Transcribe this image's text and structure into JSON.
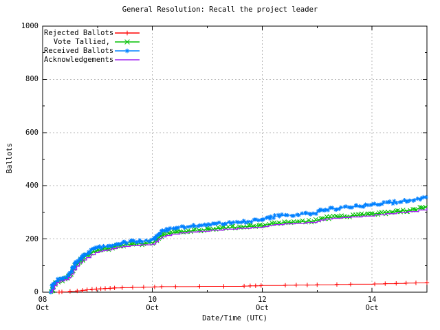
{
  "chart_data": {
    "type": "line",
    "title": "General Resolution: Recall the project leader",
    "xlabel": "Date/Time (UTC)",
    "ylabel": "Ballots",
    "grid": "on",
    "legend_position": "top-left-inside",
    "colors": {
      "grid": "#b4b4b4",
      "border": "#000000",
      "text": "#000000",
      "background": "#ffffff"
    },
    "y_axis": {
      "min": 0,
      "max": 1000,
      "major_ticks": [
        0,
        200,
        400,
        600,
        800,
        1000
      ],
      "minor_ticks": [
        100,
        300,
        500,
        700,
        900
      ]
    },
    "x_axis": {
      "unit": "days from first tick",
      "range": [
        0,
        7
      ],
      "major_ticks": [
        {
          "t": 0,
          "day": "08",
          "month": "Oct"
        },
        {
          "t": 2,
          "day": "10",
          "month": "Oct"
        },
        {
          "t": 4,
          "day": "12",
          "month": "Oct"
        },
        {
          "t": 6,
          "day": "14",
          "month": "Oct"
        }
      ],
      "minor_ticks_t": [
        1,
        3,
        5,
        7
      ]
    },
    "series": [
      {
        "name": "Rejected Ballots",
        "color": "#ff0000",
        "marker": "plus",
        "marker_mode": "points",
        "line_style": "steps",
        "points": [
          [
            0.3,
            0
          ],
          [
            0.35,
            1
          ],
          [
            0.5,
            3
          ],
          [
            0.63,
            5
          ],
          [
            0.73,
            7
          ],
          [
            0.81,
            9
          ],
          [
            0.9,
            11
          ],
          [
            0.98,
            12
          ],
          [
            1.06,
            13
          ],
          [
            1.14,
            14
          ],
          [
            1.23,
            15
          ],
          [
            1.31,
            16
          ],
          [
            1.45,
            17
          ],
          [
            1.64,
            18
          ],
          [
            1.84,
            19
          ],
          [
            2.04,
            20
          ],
          [
            2.17,
            21
          ],
          [
            2.42,
            21
          ],
          [
            2.86,
            22
          ],
          [
            3.3,
            22
          ],
          [
            3.67,
            23
          ],
          [
            3.78,
            24
          ],
          [
            3.88,
            24
          ],
          [
            3.98,
            25
          ],
          [
            4.42,
            26
          ],
          [
            4.62,
            27
          ],
          [
            4.82,
            27
          ],
          [
            5.0,
            28
          ],
          [
            5.36,
            29
          ],
          [
            5.61,
            30
          ],
          [
            6.05,
            31
          ],
          [
            6.24,
            32
          ],
          [
            6.44,
            33
          ],
          [
            6.62,
            34
          ],
          [
            6.8,
            35
          ],
          [
            7.0,
            36
          ]
        ]
      },
      {
        "name": "Vote Tallied,",
        "color": "#00c000",
        "marker": "cross",
        "marker_mode": "dense",
        "line_style": "linear",
        "points": [
          [
            0.14,
            0
          ],
          [
            0.16,
            5
          ],
          [
            0.18,
            13
          ],
          [
            0.2,
            23
          ],
          [
            0.23,
            33
          ],
          [
            0.26,
            40
          ],
          [
            0.31,
            44
          ],
          [
            0.37,
            47
          ],
          [
            0.43,
            51
          ],
          [
            0.47,
            57
          ],
          [
            0.51,
            68
          ],
          [
            0.55,
            82
          ],
          [
            0.59,
            96
          ],
          [
            0.64,
            108
          ],
          [
            0.69,
            119
          ],
          [
            0.75,
            129
          ],
          [
            0.81,
            137
          ],
          [
            0.88,
            146
          ],
          [
            0.95,
            153
          ],
          [
            1.01,
            157
          ],
          [
            1.07,
            160
          ],
          [
            1.16,
            162
          ],
          [
            1.23,
            166
          ],
          [
            1.31,
            171
          ],
          [
            1.41,
            175
          ],
          [
            1.53,
            178
          ],
          [
            1.69,
            181
          ],
          [
            1.86,
            183
          ],
          [
            2.0,
            186
          ],
          [
            2.05,
            192
          ],
          [
            2.1,
            202
          ],
          [
            2.15,
            211
          ],
          [
            2.23,
            217
          ],
          [
            2.33,
            221
          ],
          [
            2.47,
            226
          ],
          [
            2.63,
            229
          ],
          [
            2.81,
            233
          ],
          [
            3.0,
            236
          ],
          [
            3.25,
            240
          ],
          [
            3.5,
            244
          ],
          [
            3.78,
            247
          ],
          [
            4.0,
            251
          ],
          [
            4.09,
            254
          ],
          [
            4.19,
            257
          ],
          [
            4.36,
            260
          ],
          [
            4.56,
            263
          ],
          [
            4.76,
            265
          ],
          [
            4.96,
            268
          ],
          [
            5.03,
            273
          ],
          [
            5.11,
            278
          ],
          [
            5.23,
            281
          ],
          [
            5.39,
            284
          ],
          [
            5.56,
            286
          ],
          [
            5.76,
            289
          ],
          [
            6.0,
            294
          ],
          [
            6.2,
            298
          ],
          [
            6.4,
            302
          ],
          [
            6.6,
            306
          ],
          [
            6.8,
            312
          ],
          [
            6.92,
            317
          ],
          [
            7.0,
            322
          ]
        ]
      },
      {
        "name": "Received Ballots",
        "color": "#0080ff",
        "marker": "star",
        "marker_mode": "dense",
        "line_style": "linear",
        "points": [
          [
            0.13,
            0
          ],
          [
            0.15,
            6
          ],
          [
            0.17,
            15
          ],
          [
            0.19,
            26
          ],
          [
            0.22,
            37
          ],
          [
            0.25,
            44
          ],
          [
            0.3,
            48
          ],
          [
            0.36,
            51
          ],
          [
            0.42,
            55
          ],
          [
            0.46,
            62
          ],
          [
            0.5,
            74
          ],
          [
            0.54,
            89
          ],
          [
            0.58,
            103
          ],
          [
            0.63,
            116
          ],
          [
            0.68,
            127
          ],
          [
            0.74,
            137
          ],
          [
            0.8,
            146
          ],
          [
            0.87,
            155
          ],
          [
            0.94,
            162
          ],
          [
            1.0,
            166
          ],
          [
            1.06,
            169
          ],
          [
            1.15,
            171
          ],
          [
            1.22,
            175
          ],
          [
            1.3,
            180
          ],
          [
            1.4,
            185
          ],
          [
            1.52,
            188
          ],
          [
            1.68,
            191
          ],
          [
            1.85,
            193
          ],
          [
            2.0,
            196
          ],
          [
            2.04,
            204
          ],
          [
            2.09,
            217
          ],
          [
            2.14,
            227
          ],
          [
            2.22,
            233
          ],
          [
            2.32,
            237
          ],
          [
            2.46,
            242
          ],
          [
            2.62,
            246
          ],
          [
            2.8,
            250
          ],
          [
            3.0,
            254
          ],
          [
            3.25,
            259
          ],
          [
            3.5,
            263
          ],
          [
            3.78,
            267
          ],
          [
            4.0,
            272
          ],
          [
            4.08,
            278
          ],
          [
            4.18,
            283
          ],
          [
            4.35,
            287
          ],
          [
            4.55,
            290
          ],
          [
            4.75,
            293
          ],
          [
            4.95,
            297
          ],
          [
            5.02,
            303
          ],
          [
            5.1,
            309
          ],
          [
            5.22,
            313
          ],
          [
            5.38,
            316
          ],
          [
            5.55,
            319
          ],
          [
            5.75,
            323
          ],
          [
            6.0,
            329
          ],
          [
            6.2,
            334
          ],
          [
            6.4,
            338
          ],
          [
            6.6,
            343
          ],
          [
            6.8,
            350
          ],
          [
            6.92,
            355
          ],
          [
            7.0,
            359
          ]
        ]
      },
      {
        "name": "Acknowledgements",
        "color": "#a020f0",
        "marker": "none",
        "marker_mode": "none",
        "line_style": "steps",
        "points": [
          [
            0.14,
            0
          ],
          [
            0.18,
            10
          ],
          [
            0.22,
            25
          ],
          [
            0.26,
            37
          ],
          [
            0.32,
            42
          ],
          [
            0.4,
            47
          ],
          [
            0.47,
            55
          ],
          [
            0.52,
            68
          ],
          [
            0.57,
            84
          ],
          [
            0.62,
            98
          ],
          [
            0.67,
            110
          ],
          [
            0.73,
            121
          ],
          [
            0.8,
            130
          ],
          [
            0.88,
            141
          ],
          [
            0.96,
            149
          ],
          [
            1.03,
            154
          ],
          [
            1.1,
            157
          ],
          [
            1.18,
            159
          ],
          [
            1.26,
            164
          ],
          [
            1.35,
            169
          ],
          [
            1.46,
            172
          ],
          [
            1.6,
            175
          ],
          [
            1.78,
            178
          ],
          [
            2.0,
            181
          ],
          [
            2.06,
            190
          ],
          [
            2.11,
            200
          ],
          [
            2.17,
            208
          ],
          [
            2.25,
            213
          ],
          [
            2.35,
            218
          ],
          [
            2.5,
            223
          ],
          [
            2.65,
            226
          ],
          [
            2.83,
            229
          ],
          [
            3.05,
            233
          ],
          [
            3.3,
            237
          ],
          [
            3.55,
            240
          ],
          [
            3.8,
            243
          ],
          [
            4.02,
            247
          ],
          [
            4.12,
            251
          ],
          [
            4.22,
            254
          ],
          [
            4.4,
            257
          ],
          [
            4.6,
            259
          ],
          [
            4.8,
            262
          ],
          [
            5.0,
            266
          ],
          [
            5.06,
            271
          ],
          [
            5.15,
            275
          ],
          [
            5.28,
            278
          ],
          [
            5.45,
            281
          ],
          [
            5.62,
            283
          ],
          [
            5.82,
            286
          ],
          [
            6.05,
            291
          ],
          [
            6.25,
            295
          ],
          [
            6.45,
            299
          ],
          [
            6.65,
            303
          ],
          [
            6.85,
            309
          ],
          [
            7.0,
            316
          ]
        ]
      }
    ]
  }
}
